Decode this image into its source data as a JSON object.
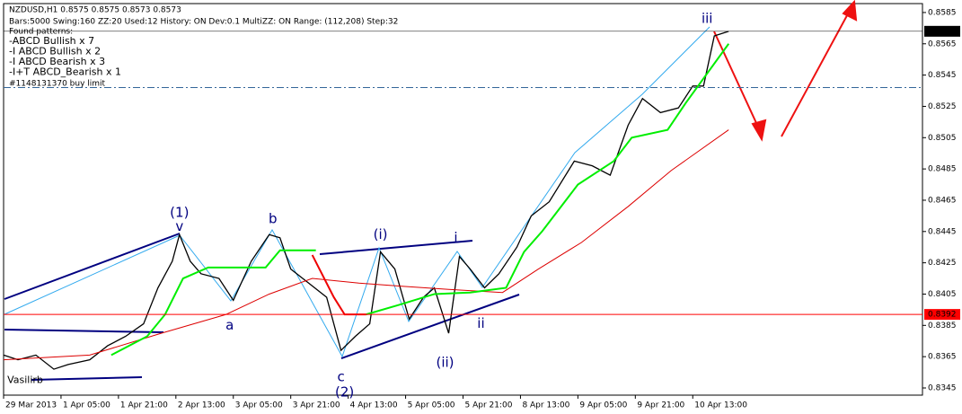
{
  "chart_data": {
    "type": "line",
    "header": "NZDUSD,H1  0.8575 0.8575 0.8573 0.8573",
    "info": "Bars:5000  Swing:160  ZZ:20  Used:12  History: ON Dev:0.1  MultiZZ: ON  Range: (112,208)  Step:32",
    "patterns_title": "Found patterns:",
    "patterns": [
      {
        "text": "-ABCD Bullish x 7",
        "color": "#22cc22"
      },
      {
        "text": "-I ABCD Bullish x 2",
        "color": "#009900"
      },
      {
        "text": "-I ABCD Bearish x 3",
        "color": "#ee0000"
      },
      {
        "text": "-I+T ABCD_Bearish x 1",
        "color": "#cc0000"
      }
    ],
    "order_label": "#1148131370 buy limit",
    "order_level": 0.8537,
    "series": [
      {
        "color": "#000000",
        "width": 1.3,
        "x": [
          0,
          4,
          9,
          14,
          18,
          24,
          29,
          34,
          39,
          43,
          47,
          49,
          52,
          55,
          60,
          64,
          69,
          74,
          77,
          80,
          85,
          90,
          94,
          98,
          102,
          105,
          109,
          113,
          117,
          120,
          124,
          127,
          130,
          134,
          138,
          143,
          147,
          152,
          159,
          164,
          169,
          174,
          178,
          183,
          188,
          192,
          195,
          198,
          202
        ],
        "values": [
          0.8366,
          0.8363,
          0.8366,
          0.8357,
          0.836,
          0.8363,
          0.8372,
          0.8378,
          0.8386,
          0.8409,
          0.8426,
          0.8443,
          0.8426,
          0.8418,
          0.8415,
          0.8401,
          0.8426,
          0.8443,
          0.8441,
          0.8421,
          0.8412,
          0.8403,
          0.8369,
          0.8378,
          0.8386,
          0.8432,
          0.8421,
          0.8389,
          0.8403,
          0.8409,
          0.838,
          0.8429,
          0.8421,
          0.8409,
          0.8418,
          0.8435,
          0.8455,
          0.8464,
          0.849,
          0.8487,
          0.8481,
          0.8513,
          0.853,
          0.8521,
          0.8524,
          0.8538,
          0.8538,
          0.857,
          0.8573
        ]
      },
      {
        "color": "#dd0000",
        "width": 1,
        "x": [
          0,
          24,
          44,
          62,
          74,
          86,
          99,
          111,
          124,
          139,
          149,
          161,
          174,
          186,
          202
        ],
        "values": [
          0.8363,
          0.8366,
          0.838,
          0.8392,
          0.8405,
          0.8415,
          0.8412,
          0.841,
          0.8408,
          0.8406,
          0.8421,
          0.8438,
          0.8461,
          0.8484,
          0.851
        ]
      },
      {
        "color": "#00ee00",
        "width": 2,
        "x": [
          30,
          40,
          45,
          50,
          57,
          73,
          77,
          87,
          92,
          101,
          110,
          120,
          130,
          140,
          145,
          150,
          160,
          170,
          175,
          185,
          190,
          202
        ],
        "values": [
          0.8366,
          0.8378,
          0.8392,
          0.8415,
          0.8422,
          0.8422,
          0.8433,
          0.8433,
          null,
          0.8392,
          0.8398,
          0.8405,
          0.8406,
          0.8409,
          0.8432,
          0.8445,
          0.8475,
          0.849,
          0.8505,
          0.851,
          0.8527,
          0.8565
        ]
      },
      {
        "color": "#ee0000",
        "width": 2,
        "x": [
          86,
          92,
          95,
          101
        ],
        "values": [
          0.843,
          0.8403,
          0.8392,
          0.8392
        ]
      }
    ],
    "xlim": [
      0,
      256
    ],
    "xticks": [
      {
        "value": 0,
        "label": "29 Mar 2013"
      },
      {
        "value": 16,
        "label": "1 Apr 05:00"
      },
      {
        "value": 32,
        "label": "1 Apr 21:00"
      },
      {
        "value": 48,
        "label": "2 Apr 13:00"
      },
      {
        "value": 64,
        "label": "3 Apr 05:00"
      },
      {
        "value": 80,
        "label": "3 Apr 21:00"
      },
      {
        "value": 96,
        "label": "4 Apr 13:00"
      },
      {
        "value": 112,
        "label": "5 Apr 05:00"
      },
      {
        "value": 128,
        "label": "5 Apr 21:00"
      },
      {
        "value": 144,
        "label": "8 Apr 13:00"
      },
      {
        "value": 160,
        "label": "9 Apr 05:00"
      },
      {
        "value": 176,
        "label": "9 Apr 21:00"
      },
      {
        "value": 192,
        "label": "10 Apr 13:00"
      }
    ],
    "ylim": [
      0.83404,
      0.85907
    ],
    "yticks": [
      0.8345,
      0.8365,
      0.8385,
      0.8405,
      0.8425,
      0.8445,
      0.8465,
      0.8485,
      0.8505,
      0.8525,
      0.8545,
      0.8565,
      0.8585
    ],
    "levels": [
      {
        "value": 0.8392,
        "label": "0.8392",
        "color": "#ff0000"
      },
      {
        "value": 0.8573,
        "label": "0.8573",
        "color": "#000000"
      }
    ],
    "annotations": [
      {
        "text": "(1)",
        "x": 49,
        "y": 0.8457
      },
      {
        "text": "v",
        "x": 49,
        "y": 0.8448
      },
      {
        "text": "b",
        "x": 75,
        "y": 0.8453
      },
      {
        "text": "a",
        "x": 63,
        "y": 0.8385
      },
      {
        "text": "c",
        "x": 94,
        "y": 0.8352
      },
      {
        "text": "(2)",
        "x": 95,
        "y": 0.8342
      },
      {
        "text": "(i)",
        "x": 105,
        "y": 0.8443
      },
      {
        "text": "i",
        "x": 126,
        "y": 0.8441
      },
      {
        "text": "(ii)",
        "x": 123,
        "y": 0.8361
      },
      {
        "text": "ii",
        "x": 133,
        "y": 0.8386
      },
      {
        "text": "iii",
        "x": 196,
        "y": 0.8581
      },
      {
        "text": "Vasilirb",
        "x": 6,
        "y": 0.835
      }
    ]
  }
}
